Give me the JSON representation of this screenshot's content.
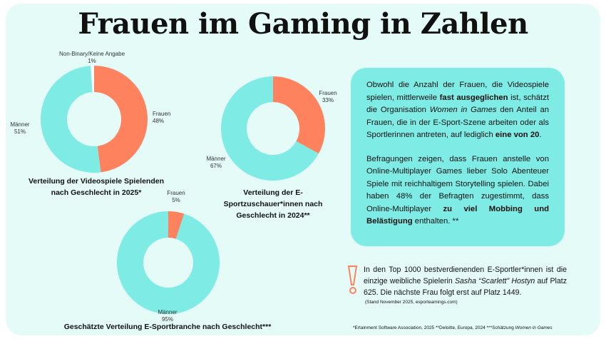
{
  "title": "Frauen im Gaming in Zahlen",
  "colors": {
    "frauen": "#ff825e",
    "maenner": "#7eebe5",
    "nonbinary": "#ffffff",
    "background": "#e4fbf8",
    "textbox": "#7eebe5"
  },
  "chart_data": [
    {
      "type": "pie",
      "donut": true,
      "title": "Verteilung der Videospiele Spielenden nach Geschlecht in 2025*",
      "slices": [
        {
          "label": "Frauen",
          "value": 48,
          "display": "48%"
        },
        {
          "label": "Männer",
          "value": 51,
          "display": "51%"
        },
        {
          "label": "Non-Binary/Keine Angabe",
          "value": 1,
          "display": "1%"
        }
      ]
    },
    {
      "type": "pie",
      "donut": true,
      "title": "Verteilung der E-Sportzuschauer*innen nach Geschlecht in 2024**",
      "slices": [
        {
          "label": "Frauen",
          "value": 33,
          "display": "33%"
        },
        {
          "label": "Männer",
          "value": 67,
          "display": "67%"
        }
      ]
    },
    {
      "type": "pie",
      "donut": true,
      "title": "Geschätzte Verteilung E-Sportbranche nach Geschlecht***",
      "slices": [
        {
          "label": "Frauen",
          "value": 5,
          "display": "5%"
        },
        {
          "label": "Männer",
          "value": 95,
          "display": "95%"
        }
      ]
    }
  ],
  "captions": {
    "c1a": "Verteilung der Videospiele Spielenden",
    "c1b": "nach Geschlecht in 2025*",
    "c2a": "Verteilung der E-",
    "c2b": "Sportzuschauer*innen nach",
    "c2c": "Geschlecht in 2024**",
    "c3": "Geschätzte Verteilung E-Sportbranche nach Geschlecht***"
  },
  "textbox": {
    "p1_a": "Obwohl die Anzahl der Frauen, die Videospiele spielen, mittlerweile ",
    "p1_b": "fast ausgeglichen",
    "p1_c": " ist, schätzt die Organisation ",
    "p1_d": "Women in Games",
    "p1_e": " den Anteil an Frauen, die in der E-Sport-Szene arbeiten oder als Sportlerinnen antreten, auf lediglich ",
    "p1_f": "eine von 20",
    "p1_g": ".",
    "p2_a": "Befragungen zeigen, dass Frauen anstelle von Online-Multiplayer Games lieber Solo Abenteuer Spiele mit reichhaltigem Storytelling spielen. Dabei haben 48% der Befragten zugestimmt, dass Online-Multiplayer ",
    "p2_b": "zu viel Mobbing und Belästigung",
    "p2_c": " enthalten. **"
  },
  "fact": {
    "a": "In den Top 1000 bestverdienenden E-Sportler*innen ist die einzige weibliche Spielerin ",
    "b": "Sasha “Scarlett” Hostyn",
    "c": " auf Platz 625. Die nächste Frau folgt erst auf Platz 1449.",
    "stand": "(Stand November 2025, esporteamings.com)",
    "icon": "exclamation-icon"
  },
  "footnote": {
    "a": "*Ertainment Software Association,  2025  **Deloitte, Europa, 2024  ***Schätzung ",
    "b": "Women in Games"
  }
}
